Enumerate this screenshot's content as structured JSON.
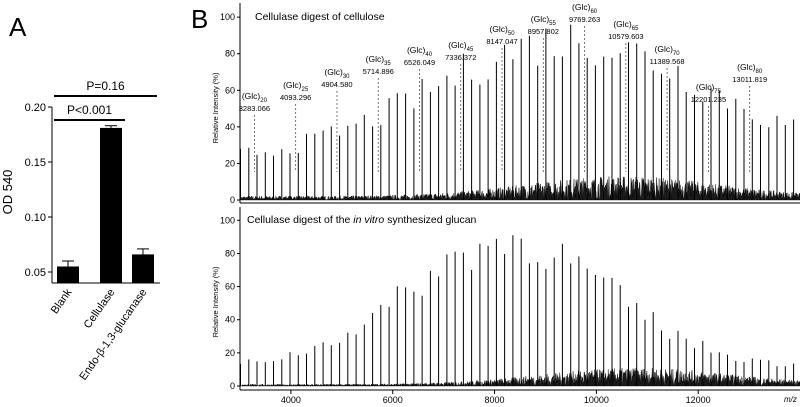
{
  "chart_data": [
    {
      "panel": "A",
      "type": "bar",
      "ylabel": "OD 540",
      "ylim": [
        0.04,
        0.2
      ],
      "yticks": [
        "0.05",
        "0.10",
        "0.15",
        "0.20"
      ],
      "ytick_values": [
        0.05,
        0.1,
        0.15,
        0.2
      ],
      "categories": [
        "Blank",
        "Cellulase",
        "Endo-β-1,3-glucanase"
      ],
      "values": [
        0.055,
        0.181,
        0.066
      ],
      "errors": [
        0.005,
        0.002,
        0.005
      ],
      "color": "#000000",
      "significance": [
        {
          "label": "P<0.001",
          "from": 0,
          "to": 1
        },
        {
          "label": "P=0.16",
          "from": 0,
          "to": 2
        }
      ]
    },
    {
      "panel": "B",
      "type": "line",
      "xlabel": "m/z",
      "xlim": [
        3000,
        14000
      ],
      "xticks": [
        "4000",
        "6000",
        "8000",
        "10000",
        "12000"
      ],
      "xtick_values": [
        4000,
        6000,
        8000,
        10000,
        12000
      ],
      "ylabel": "Relative Intensity (%)",
      "ylim": [
        0,
        105
      ],
      "yticks": [
        "0",
        "20",
        "40",
        "60",
        "80",
        "100"
      ],
      "ytick_values": [
        0,
        20,
        40,
        60,
        80,
        100
      ],
      "series": [
        {
          "name": "Cellulase digest of cellulose",
          "title": "Cellulase digest of cellulose",
          "peak_interval": 162.14,
          "peak_mz": [
            3283.066,
            4093.296,
            4904.58,
            5714.896,
            6526.049,
            7336.372,
            8147.047,
            8957.802,
            9769.263,
            10579.603,
            11389.568,
            12201.235,
            13011.819
          ],
          "peak_labels": [
            {
              "glc": "20",
              "mz": "3283.066"
            },
            {
              "glc": "25",
              "mz": "4093.296"
            },
            {
              "glc": "30",
              "mz": "4904.580"
            },
            {
              "glc": "35",
              "mz": "5714.896"
            },
            {
              "glc": "40",
              "mz": "6526.049"
            },
            {
              "glc": "45",
              "mz": "7336.372"
            },
            {
              "glc": "50",
              "mz": "8147.047"
            },
            {
              "glc": "55",
              "mz": "8957.802"
            },
            {
              "glc": "60",
              "mz": "9769.263"
            },
            {
              "glc": "65",
              "mz": "10579.603"
            },
            {
              "glc": "70",
              "mz": "11389.568"
            },
            {
              "glc": "75",
              "mz": "12201.235"
            },
            {
              "glc": "80",
              "mz": "13011.819"
            }
          ],
          "envelope": {
            "center_mz": 9500,
            "max_percent": 90,
            "min_percent": 22,
            "spread_mz": 3800
          },
          "baseline": {
            "start_percent": 2,
            "peak_percent": 12,
            "center_mz": 10500
          }
        },
        {
          "name": "Cellulase digest of the in vitro synthesized glucan",
          "title_pre": "Cellulase digest of the ",
          "title_italic": "in vitro",
          "title_post": " synthesized glucan",
          "peak_interval": 162.14,
          "envelope": {
            "center_mz": 8300,
            "max_percent": 90,
            "min_percent": 12,
            "spread_mz": 2800
          },
          "baseline": {
            "start_percent": 1,
            "peak_percent": 10,
            "center_mz": 10800
          }
        }
      ]
    }
  ],
  "labels": {
    "panel_a": "A",
    "panel_b": "B",
    "glc": "(Glc)",
    "mz_axis": "m/z"
  }
}
